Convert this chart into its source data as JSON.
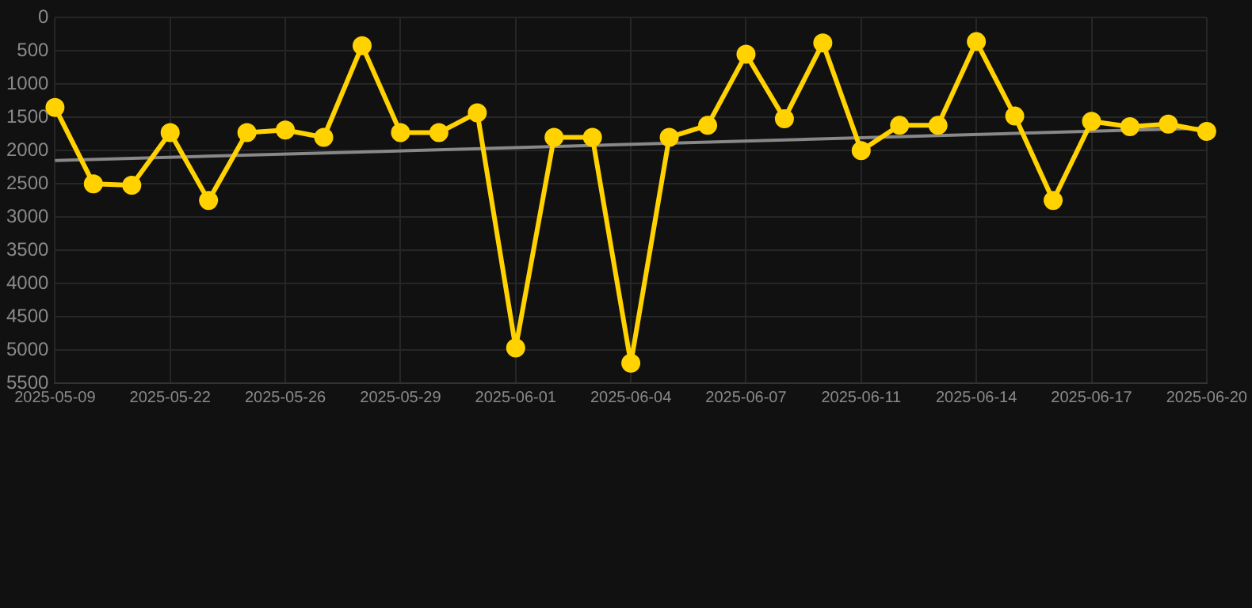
{
  "chart_data": {
    "type": "line",
    "categories": [
      "2025-05-09",
      null,
      null,
      "2025-05-22",
      null,
      null,
      "2025-05-26",
      null,
      null,
      "2025-05-29",
      null,
      null,
      "2025-06-01",
      null,
      null,
      "2025-06-04",
      null,
      null,
      "2025-06-07",
      null,
      null,
      "2025-06-11",
      null,
      null,
      "2025-06-14",
      null,
      null,
      "2025-06-17",
      null,
      null,
      "2025-06-20"
    ],
    "series": [
      {
        "color": "#ffd200",
        "values": [
          1350,
          2500,
          2520,
          1730,
          2750,
          1730,
          1690,
          1800,
          420,
          1730,
          1730,
          1430,
          4970,
          1800,
          1800,
          5200,
          1800,
          1620,
          550,
          1520,
          380,
          2000,
          1620,
          1620,
          360,
          1480,
          2750,
          1560,
          1640,
          1600,
          1710
        ]
      },
      {
        "type": "line",
        "color": "#888888",
        "values": [
          2150,
          null,
          null,
          null,
          null,
          null,
          null,
          null,
          null,
          null,
          null,
          null,
          null,
          null,
          null,
          null,
          null,
          null,
          null,
          null,
          null,
          null,
          null,
          null,
          null,
          null,
          null,
          null,
          null,
          null,
          1660
        ],
        "marker": "none"
      }
    ],
    "ylim": [
      5500,
      0
    ],
    "yticks": [
      0,
      500,
      1000,
      1500,
      2000,
      2500,
      3000,
      3500,
      4000,
      4500,
      5000,
      5500
    ],
    "grid": true,
    "legend": false,
    "marker": "circle",
    "line_style": "solid"
  }
}
